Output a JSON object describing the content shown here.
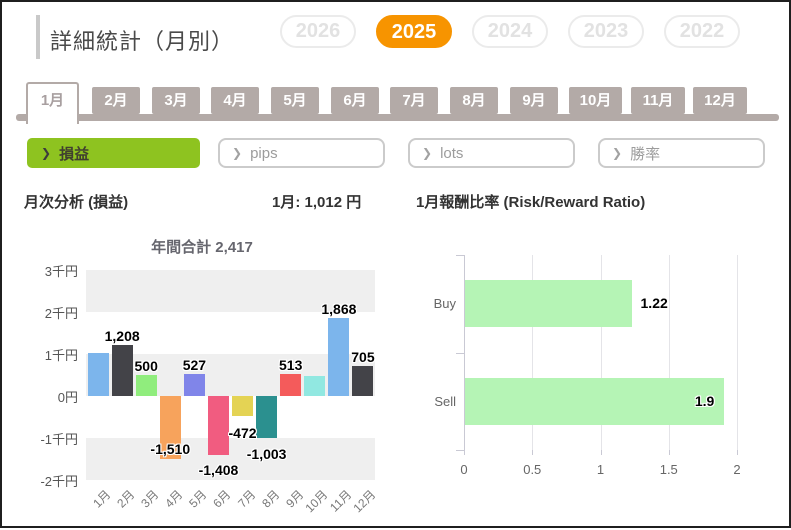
{
  "page": {
    "title": "詳細統計（月別）"
  },
  "icons": {
    "chevron_right": "❯"
  },
  "colors": {
    "accent_orange": "#f79400",
    "accent_green": "#8ec320",
    "tab_taupe": "#b3aaa7",
    "rr_bar_green": "#b5f4b5"
  },
  "year_selector": {
    "options": [
      "2026",
      "2025",
      "2024",
      "2023",
      "2022"
    ],
    "selected": "2025"
  },
  "month_tabs": {
    "options": [
      "1月",
      "2月",
      "3月",
      "4月",
      "5月",
      "6月",
      "7月",
      "8月",
      "9月",
      "10月",
      "11月",
      "12月"
    ],
    "selected": "1月"
  },
  "metric_buttons": {
    "options": [
      "損益",
      "pips",
      "lots",
      "勝率"
    ],
    "selected": "損益"
  },
  "summary": {
    "left_chart_title": "月次分析 (損益)",
    "selected_month_value": "1月: 1,012 円",
    "right_chart_title": "1月報酬比率 (Risk/Reward Ratio)"
  },
  "chart_data": [
    {
      "type": "bar",
      "title": "年間合計 2,417",
      "categories": [
        "1月",
        "2月",
        "3月",
        "4月",
        "5月",
        "6月",
        "7月",
        "8月",
        "9月",
        "10月",
        "11月",
        "12月"
      ],
      "values": [
        1012,
        1208,
        500,
        -1510,
        527,
        -1408,
        -472,
        -1003,
        513,
        477,
        1868,
        705
      ],
      "data_labels": [
        "",
        "1,208",
        "500",
        "-1,510",
        "527",
        "-1,408",
        "-472",
        "-1,003",
        "513",
        "",
        "1,868",
        "705"
      ],
      "bar_colors": [
        "#7cb5ec",
        "#434348",
        "#90ed7d",
        "#f7a35c",
        "#8085e9",
        "#f15c80",
        "#e4d354",
        "#2b908f",
        "#f45b5b",
        "#91e8e1",
        "#7cb5ec",
        "#434348"
      ],
      "y_ticks": {
        "labels": [
          "3千円",
          "2千円",
          "1千円",
          "0円",
          "-1千円",
          "-2千円"
        ],
        "values": [
          3000,
          2000,
          1000,
          0,
          -1000,
          -2000
        ]
      },
      "ylim": [
        -2000,
        3000
      ],
      "xlabel": "",
      "ylabel": "",
      "grid_bands": "alternating gray from top",
      "neg_label_dy": {
        "3": -18,
        "5": 7,
        "6": 9,
        "7": 8
      },
      "notes": "1月 (1,012) and 10月 (≈477, estimated from 年間合計 2,417) bars are shown without data labels"
    },
    {
      "type": "bar_horizontal",
      "categories": [
        "Buy",
        "Sell"
      ],
      "values": [
        1.22,
        1.9
      ],
      "data_labels": [
        "1.22",
        "1.9"
      ],
      "label_placement": [
        "outside",
        "inside"
      ],
      "bar_color": "#b5f4b5",
      "x_ticks": {
        "labels": [
          "0",
          "0.5",
          "1",
          "1.5",
          "2"
        ],
        "values": [
          0,
          0.5,
          1,
          1.5,
          2
        ]
      },
      "xlim": [
        0,
        2
      ],
      "legend": "none"
    }
  ]
}
